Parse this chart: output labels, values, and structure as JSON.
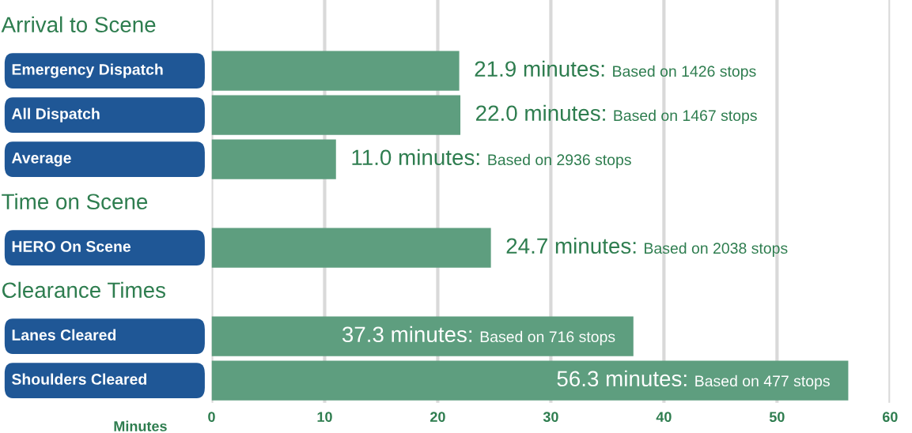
{
  "chart_data": {
    "type": "bar",
    "orientation": "horizontal",
    "categories": [
      null,
      "Emergency Dispatch",
      "All Dispatch",
      "Average",
      null,
      "HERO On Scene",
      null,
      "Lanes Cleared",
      "Shoulders Cleared"
    ],
    "values": [
      null,
      21.9,
      22.0,
      11.0,
      null,
      24.7,
      null,
      37.3,
      56.3
    ],
    "value_labels": [
      null,
      "21.9 minutes: Based on 1426 stops",
      "22.0 minutes: Based on 1467 stops",
      "11.0 minutes: Based on 2936 stops",
      null,
      "24.7 minutes: Based on 2038 stops",
      null,
      "37.3 minutes: Based on 716 stops",
      "56.3 minutes: Based on 477 stops"
    ],
    "color": "#5e9e7f",
    "annotations": [
      "Arrival to Scene",
      "Time on Scene",
      "Clearance Times"
    ],
    "xlabel": "Minutes",
    "xlim": [
      0,
      60
    ],
    "xticks": [
      0,
      10,
      20,
      30,
      40,
      50,
      60
    ],
    "grid": "x"
  }
}
